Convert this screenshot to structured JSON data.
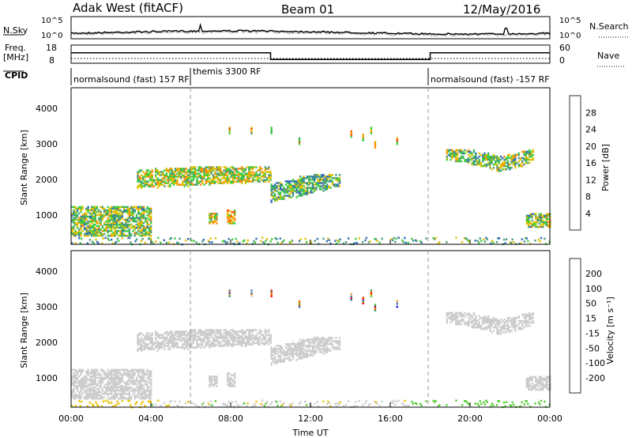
{
  "header": {
    "station": "Adak West (fitACF)",
    "beam": "Beam 01",
    "date": "12/May/2016"
  },
  "noise_panel": {
    "left_label": "N.Sky",
    "right_label": "N.Search",
    "ticks": [
      "10^5",
      "10^0"
    ],
    "ticks_right": [
      "10^5",
      "10^0"
    ]
  },
  "freq_panel": {
    "left_label_line1": "Freq.",
    "left_label_line2": "[MHz]",
    "ticks": [
      "18",
      "8"
    ],
    "right_label": "Nave",
    "ticks_right": [
      "60",
      "0"
    ]
  },
  "cpid": {
    "label": "CPID",
    "segments": [
      {
        "text": "normalsound (fast) 157 RF",
        "start_hour": 0
      },
      {
        "text": "themis 3300 RF",
        "start_hour": 6
      },
      {
        "text": "normalsound (fast) -157 RF",
        "start_hour": 18
      }
    ]
  },
  "power_panel": {
    "ylabel": "Slant Range [km]",
    "yticks": [
      "1000",
      "2000",
      "3000",
      "4000"
    ],
    "colorbar_label": "Power [dB]",
    "colorbar_ticks": [
      "4",
      "8",
      "12",
      "16",
      "20",
      "24",
      "28"
    ],
    "colors": [
      "#0000ff",
      "#2d6bb8",
      "#4a9a7a",
      "#3ccc3c",
      "#e0c000",
      "#ff8c00",
      "#ff4500",
      "#ff0000"
    ]
  },
  "velocity_panel": {
    "ylabel": "Slant Range [km]",
    "yticks": [
      "1000",
      "2000",
      "3000",
      "4000"
    ],
    "colorbar_label": "Velocity [m s⁻¹]",
    "colorbar_ticks": [
      "200",
      "100",
      "50",
      "15",
      "-15",
      "-50",
      "-100",
      "-200"
    ],
    "colors": [
      "#1a1aff",
      "#2a6aaa",
      "#3c8c5a",
      "#55cc33",
      "#cccccc",
      "#e8c000",
      "#ff8c00",
      "#ff4500",
      "#ff0000"
    ]
  },
  "xaxis": {
    "label": "Time UT",
    "ticks": [
      "00:00",
      "04:00",
      "08:00",
      "12:00",
      "16:00",
      "20:00",
      "00:00"
    ]
  },
  "chart_data": {
    "type": "heatmap",
    "x_range_hours": [
      0,
      24
    ],
    "y_range_km": [
      180,
      4600
    ],
    "vertical_markers_hours": [
      6,
      18
    ],
    "freq_series": [
      {
        "start": 0,
        "end": 10,
        "freq": 15
      },
      {
        "start": 10,
        "end": 18,
        "freq": 10.5
      },
      {
        "start": 18,
        "end": 24,
        "freq": 15
      }
    ],
    "echo_regions": [
      {
        "name": "low-range morning",
        "t0": 0,
        "t1": 4,
        "r0": 450,
        "r1": 1300,
        "power": 14,
        "velocity": 0
      },
      {
        "name": "main band",
        "t0": 3.3,
        "t1": 10,
        "r0": 1800,
        "r1": 2400,
        "power": 16,
        "velocity": 0
      },
      {
        "name": "descending band",
        "t0": 10,
        "t1": 13.5,
        "r0": 1400,
        "r1": 2200,
        "power": 12,
        "velocity": 0
      },
      {
        "name": "blob 07-08",
        "t0": 6.9,
        "t1": 7.3,
        "r0": 800,
        "r1": 1100,
        "power": 16,
        "velocity": 0
      },
      {
        "name": "blob 08",
        "t0": 7.8,
        "t1": 8.2,
        "r0": 800,
        "r1": 1200,
        "power": 20,
        "velocity": 0
      },
      {
        "name": "evening arc",
        "t0": 18.8,
        "t1": 23.2,
        "r0": 2100,
        "r1": 2900,
        "power": 14,
        "velocity": 0
      },
      {
        "name": "late low range",
        "t0": 22.8,
        "t1": 24,
        "r0": 700,
        "r1": 1100,
        "power": 14,
        "velocity": 0
      }
    ]
  }
}
